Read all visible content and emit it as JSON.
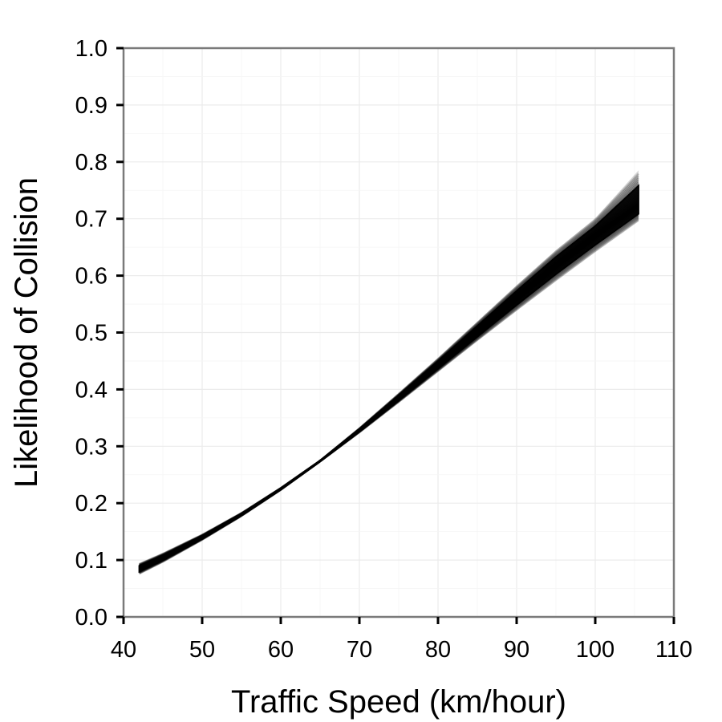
{
  "chart_data": {
    "type": "line",
    "title": "",
    "xlabel": "Traffic Speed (km/hour)",
    "ylabel": "Likelihood of Collision",
    "xlim": [
      40,
      110
    ],
    "ylim": [
      0.0,
      1.0
    ],
    "xticks": [
      "40",
      "50",
      "60",
      "70",
      "80",
      "90",
      "100",
      "110"
    ],
    "yticks": [
      "0.0",
      "0.1",
      "0.2",
      "0.3",
      "0.4",
      "0.5",
      "0.6",
      "0.7",
      "0.8",
      "0.9",
      "1.0"
    ],
    "grid": true,
    "legend": "none",
    "line_color": "#000000",
    "band": {
      "x": [
        42,
        45,
        50,
        55,
        60,
        65,
        70,
        75,
        80,
        85,
        90,
        95,
        100,
        105.5
      ],
      "center": [
        0.085,
        0.104,
        0.14,
        0.18,
        0.225,
        0.274,
        0.328,
        0.385,
        0.443,
        0.502,
        0.561,
        0.618,
        0.67,
        0.725
      ],
      "lower": [
        0.075,
        0.096,
        0.135,
        0.177,
        0.223,
        0.273,
        0.324,
        0.377,
        0.431,
        0.485,
        0.538,
        0.59,
        0.641,
        0.695
      ],
      "upper": [
        0.094,
        0.112,
        0.145,
        0.183,
        0.227,
        0.275,
        0.332,
        0.393,
        0.455,
        0.519,
        0.583,
        0.645,
        0.701,
        0.785
      ]
    }
  }
}
